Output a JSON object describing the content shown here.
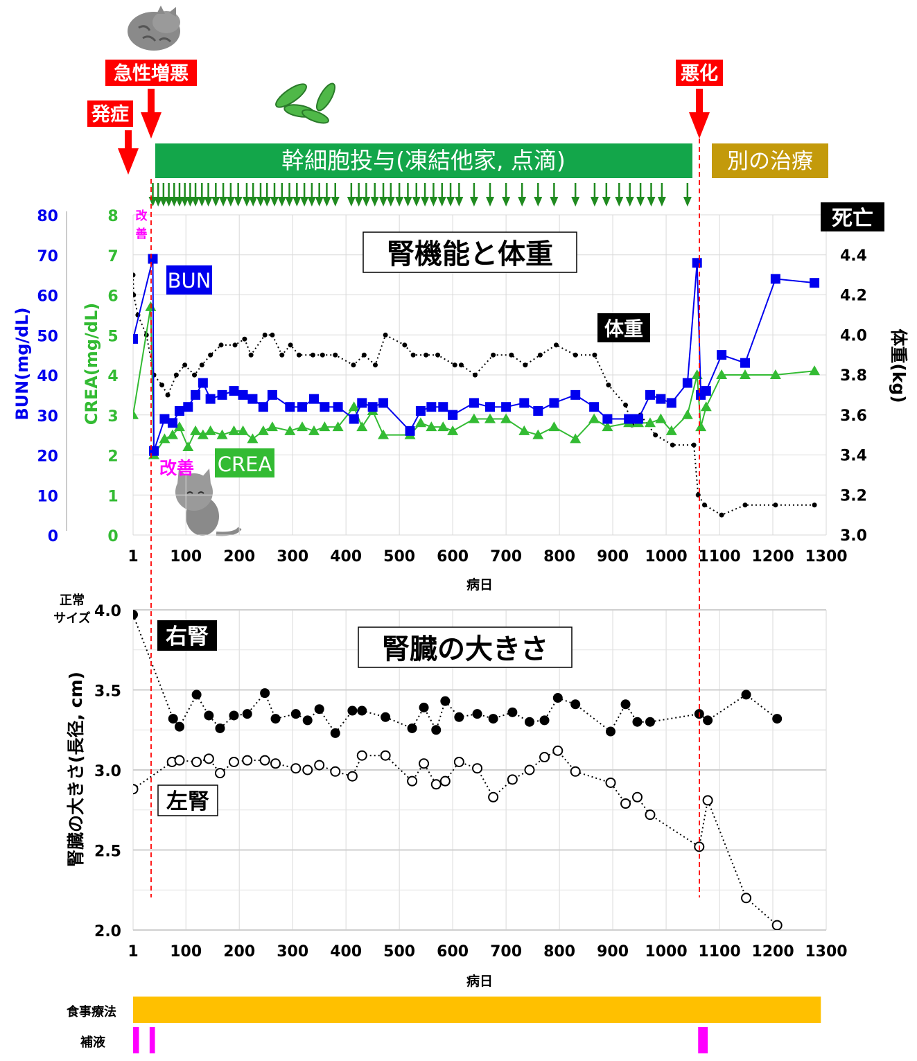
{
  "banners": {
    "onset": "発症",
    "acute": "急性増悪",
    "worse": "悪化",
    "stemcell": "幹細胞投与(凍結他家, 点滴)",
    "other_treatment": "別の治療",
    "death": "死亡",
    "improve_small": "改善",
    "improve": "改善"
  },
  "colors": {
    "bun": "#0000ee",
    "crea": "#33bb33",
    "weight": "#000000",
    "red": "#ff0000",
    "green_banner": "#13a64a",
    "gold_banner": "#c39a0b",
    "magenta": "#ff00ff",
    "orange": "#ffc000"
  },
  "icons": [
    "sleeping-cat-icon",
    "stem-cell-icon",
    "sitting-cat-icon"
  ],
  "chart_data": [
    {
      "type": "line",
      "title": "腎機能と体重",
      "xlabel": "病日",
      "x_ticks": [
        "1",
        "100",
        "200",
        "300",
        "400",
        "500",
        "600",
        "700",
        "800",
        "900",
        "1000",
        "1100",
        "1200",
        "1300"
      ],
      "xlim": [
        1,
        1300
      ],
      "axes": {
        "bun": {
          "label": "BUN(mg/dL)",
          "ylim": [
            0,
            80
          ],
          "ticks": [
            "0",
            "10",
            "20",
            "30",
            "40",
            "50",
            "60",
            "70",
            "80"
          ]
        },
        "crea": {
          "label": "CREA(mg/dL)",
          "ylim": [
            0,
            8
          ],
          "ticks": [
            "0",
            "1",
            "2",
            "3",
            "4",
            "5",
            "6",
            "7",
            "8"
          ]
        },
        "weight": {
          "label": "体重(kg)",
          "ylim": [
            3.0,
            4.4
          ],
          "ticks": [
            "3.0",
            "3.2",
            "3.4",
            "3.6",
            "3.8",
            "4.0",
            "4.2",
            "4.4"
          ]
        }
      },
      "series": [
        {
          "name": "BUN",
          "axis": "bun",
          "x": [
            1,
            38,
            40,
            60,
            75,
            88,
            104,
            118,
            132,
            146,
            168,
            190,
            207,
            225,
            245,
            262,
            295,
            318,
            340,
            360,
            385,
            415,
            430,
            450,
            470,
            520,
            540,
            560,
            582,
            600,
            600,
            640,
            670,
            700,
            734,
            760,
            790,
            830,
            865,
            890,
            930,
            948,
            970,
            990,
            1010,
            1040,
            1058,
            1065,
            1075,
            1104,
            1148,
            1205,
            1278
          ],
          "y": [
            49,
            69,
            21,
            29,
            28,
            31,
            32,
            35,
            38,
            34,
            35,
            36,
            35,
            34,
            32,
            35,
            32,
            32,
            34,
            32,
            32,
            29,
            33,
            32,
            33,
            26,
            31,
            32,
            32,
            30,
            30,
            33,
            32,
            32,
            33,
            31,
            33,
            35,
            32,
            29,
            29,
            29,
            35,
            34,
            33,
            38,
            68,
            35,
            36,
            45,
            43,
            64,
            63
          ]
        },
        {
          "name": "CREA",
          "axis": "crea",
          "x": [
            1,
            34,
            40,
            60,
            75,
            88,
            104,
            118,
            132,
            146,
            168,
            190,
            207,
            225,
            245,
            262,
            295,
            318,
            340,
            360,
            385,
            415,
            430,
            450,
            470,
            520,
            540,
            560,
            582,
            600,
            640,
            670,
            700,
            734,
            760,
            790,
            830,
            865,
            890,
            930,
            948,
            970,
            990,
            1010,
            1040,
            1058,
            1065,
            1075,
            1104,
            1148,
            1205,
            1278
          ],
          "y": [
            3.0,
            5.7,
            2.0,
            2.4,
            2.5,
            2.7,
            2.2,
            2.6,
            2.5,
            2.6,
            2.5,
            2.6,
            2.6,
            2.4,
            2.6,
            2.7,
            2.6,
            2.7,
            2.6,
            2.7,
            2.7,
            3.2,
            2.7,
            3.1,
            2.5,
            2.5,
            2.8,
            2.7,
            2.7,
            2.6,
            2.9,
            2.9,
            2.9,
            2.6,
            2.5,
            2.7,
            2.4,
            2.9,
            2.7,
            2.8,
            2.8,
            2.8,
            2.9,
            2.6,
            3.0,
            4.0,
            2.7,
            3.2,
            4.0,
            4.0,
            4.0,
            4.1
          ]
        },
        {
          "name": "体重",
          "axis": "weight",
          "x": [
            1,
            2,
            10,
            26,
            40,
            55,
            66,
            82,
            98,
            116,
            130,
            146,
            166,
            192,
            210,
            222,
            248,
            262,
            280,
            296,
            312,
            338,
            356,
            380,
            414,
            434,
            455,
            474,
            510,
            526,
            550,
            572,
            604,
            616,
            642,
            676,
            710,
            736,
            764,
            794,
            830,
            866,
            892,
            924,
            936,
            952,
            980,
            1012,
            1052,
            1060,
            1072,
            1104,
            1148,
            1205,
            1278
          ],
          "y": [
            4.3,
            4.2,
            4.1,
            4.0,
            3.8,
            3.75,
            3.7,
            3.8,
            3.85,
            3.8,
            3.85,
            3.9,
            3.95,
            3.95,
            3.98,
            3.9,
            4.0,
            4.0,
            3.9,
            3.95,
            3.9,
            3.9,
            3.9,
            3.9,
            3.85,
            3.9,
            3.85,
            4.0,
            3.95,
            3.9,
            3.9,
            3.9,
            3.85,
            3.85,
            3.8,
            3.9,
            3.9,
            3.85,
            3.9,
            3.95,
            3.9,
            3.9,
            3.75,
            3.65,
            3.55,
            3.6,
            3.5,
            3.45,
            3.45,
            3.2,
            3.15,
            3.1,
            3.15,
            3.15,
            3.15
          ]
        }
      ],
      "labels": {
        "bun": "BUN",
        "crea": "CREA",
        "weight": "体重"
      }
    },
    {
      "type": "scatter",
      "title": "腎臓の大きさ",
      "xlabel": "病日",
      "ylabel": "腎臓の大きさ(長径, cm)",
      "normal_label": "正常サイズ",
      "ylim": [
        2.0,
        4.0
      ],
      "y_ticks": [
        "2.0",
        "2.5",
        "3.0",
        "3.5",
        "4.0"
      ],
      "x_ticks": [
        "1",
        "100",
        "200",
        "300",
        "400",
        "500",
        "600",
        "700",
        "800",
        "900",
        "1000",
        "1100",
        "1200",
        "1300"
      ],
      "xlim": [
        1,
        1300
      ],
      "series": [
        {
          "name": "右腎",
          "x": [
            1,
            76,
            88,
            120,
            143,
            164,
            190,
            215,
            248,
            268,
            306,
            328,
            350,
            380,
            412,
            430,
            474,
            524,
            546,
            569,
            586,
            612,
            646,
            676,
            712,
            744,
            772,
            797,
            830,
            896,
            924,
            946,
            970,
            1062,
            1078,
            1150,
            1208
          ],
          "y": [
            3.97,
            3.32,
            3.27,
            3.47,
            3.34,
            3.26,
            3.34,
            3.35,
            3.48,
            3.32,
            3.35,
            3.31,
            3.38,
            3.23,
            3.37,
            3.37,
            3.33,
            3.26,
            3.39,
            3.25,
            3.43,
            3.33,
            3.35,
            3.32,
            3.36,
            3.3,
            3.31,
            3.45,
            3.41,
            3.24,
            3.41,
            3.3,
            3.3,
            3.35,
            3.31,
            3.47,
            3.32
          ]
        },
        {
          "name": "左腎",
          "x": [
            1,
            74,
            88,
            120,
            143,
            164,
            190,
            215,
            248,
            268,
            306,
            328,
            350,
            380,
            412,
            430,
            474,
            524,
            546,
            569,
            586,
            612,
            646,
            676,
            712,
            744,
            772,
            797,
            830,
            896,
            924,
            946,
            970,
            1062,
            1078,
            1150,
            1208
          ],
          "y": [
            2.88,
            3.05,
            3.06,
            3.05,
            3.07,
            2.98,
            3.05,
            3.06,
            3.06,
            3.04,
            3.01,
            3.0,
            3.03,
            2.99,
            2.96,
            3.09,
            3.09,
            2.93,
            3.04,
            2.91,
            2.93,
            3.05,
            3.01,
            2.83,
            2.94,
            3.0,
            3.08,
            3.12,
            2.99,
            2.92,
            2.79,
            2.83,
            2.72,
            2.52,
            2.81,
            2.2,
            2.03
          ]
        }
      ]
    }
  ],
  "treatments": {
    "diet": {
      "label": "食事療法",
      "start": 1,
      "end": 1290
    },
    "fluid": {
      "label": "補液",
      "segments": [
        [
          1,
          12
        ],
        [
          32,
          42
        ],
        [
          1060,
          1078
        ]
      ]
    }
  },
  "stemcell_doses": [
    38,
    48,
    58,
    68,
    78,
    88,
    98,
    108,
    118,
    130,
    142,
    156,
    170,
    184,
    198,
    214,
    226,
    240,
    252,
    266,
    280,
    294,
    308,
    322,
    336,
    350,
    364,
    380,
    410,
    424,
    438,
    454,
    470,
    484,
    500,
    516,
    532,
    548,
    564,
    580,
    596,
    612,
    640,
    670,
    700,
    730,
    760,
    790,
    830,
    866,
    888,
    912,
    932,
    952,
    972,
    992,
    1040
  ]
}
